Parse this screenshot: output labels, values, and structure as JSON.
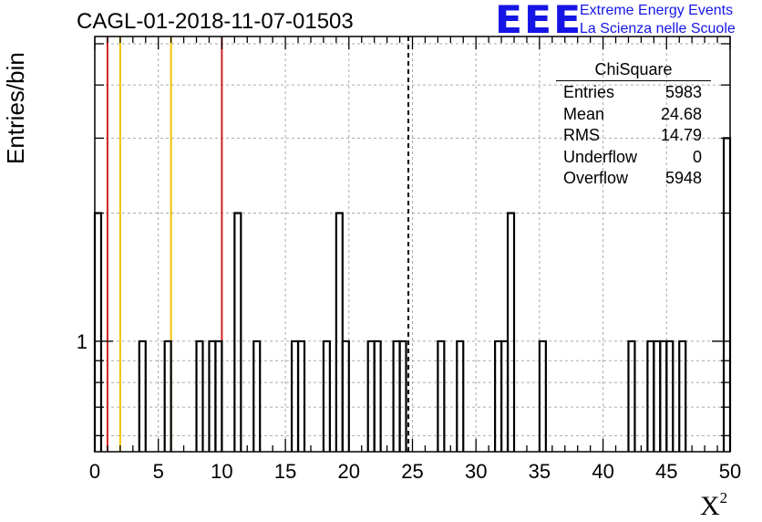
{
  "title": "CAGL-01-2018-11-07-01503",
  "logo": {
    "text": "EEE",
    "line1": "Extreme Energy Events",
    "line2": "La Scienza nelle Scuole",
    "color": "#1515e6"
  },
  "axes": {
    "ylabel": "Entries/bin",
    "xlabel": "X",
    "xlabel_sup": "2"
  },
  "stats": {
    "name": "ChiSquare",
    "rows": [
      {
        "label": "Entries",
        "value": "5983"
      },
      {
        "label": "Mean",
        "value": "24.68"
      },
      {
        "label": "RMS",
        "value": "14.79"
      },
      {
        "label": "Underflow",
        "value": "0"
      },
      {
        "label": "Overflow",
        "value": "5948"
      }
    ]
  },
  "chart_data": {
    "type": "histogram",
    "bin_width": 0.5,
    "xlim": [
      0,
      50
    ],
    "y_scale": "log",
    "ylim": [
      0.55,
      5.2
    ],
    "x_ticks": [
      0,
      5,
      10,
      15,
      20,
      25,
      30,
      35,
      40,
      45,
      50
    ],
    "y_tick_labels": [
      {
        "value": 1,
        "label": "1"
      }
    ],
    "grid": true,
    "bins": [
      {
        "x": 0,
        "y": 2
      },
      {
        "x": 3.5,
        "y": 1
      },
      {
        "x": 5.5,
        "y": 1
      },
      {
        "x": 8,
        "y": 1
      },
      {
        "x": 9,
        "y": 1
      },
      {
        "x": 9.5,
        "y": 1
      },
      {
        "x": 11,
        "y": 2
      },
      {
        "x": 12.5,
        "y": 1
      },
      {
        "x": 15.5,
        "y": 1
      },
      {
        "x": 16,
        "y": 1
      },
      {
        "x": 18,
        "y": 1
      },
      {
        "x": 19,
        "y": 2
      },
      {
        "x": 19.5,
        "y": 1
      },
      {
        "x": 21.5,
        "y": 1
      },
      {
        "x": 22,
        "y": 1
      },
      {
        "x": 23.5,
        "y": 1
      },
      {
        "x": 24,
        "y": 1
      },
      {
        "x": 27,
        "y": 1
      },
      {
        "x": 28.5,
        "y": 1
      },
      {
        "x": 31.5,
        "y": 1
      },
      {
        "x": 32,
        "y": 1
      },
      {
        "x": 32.5,
        "y": 2
      },
      {
        "x": 35,
        "y": 1
      },
      {
        "x": 42,
        "y": 1
      },
      {
        "x": 43.5,
        "y": 1
      },
      {
        "x": 44,
        "y": 1
      },
      {
        "x": 44.5,
        "y": 1
      },
      {
        "x": 45,
        "y": 1
      },
      {
        "x": 46,
        "y": 1
      },
      {
        "x": 49.5,
        "y": 3
      }
    ],
    "vlines": [
      {
        "x": 1,
        "color": "#d42020",
        "dash": false
      },
      {
        "x": 2,
        "color": "#f5c000",
        "dash": false
      },
      {
        "x": 6,
        "color": "#f5c000",
        "dash": false
      },
      {
        "x": 10,
        "color": "#d42020",
        "dash": false
      },
      {
        "x": 24.68,
        "color": "#000000",
        "dash": true
      }
    ]
  }
}
